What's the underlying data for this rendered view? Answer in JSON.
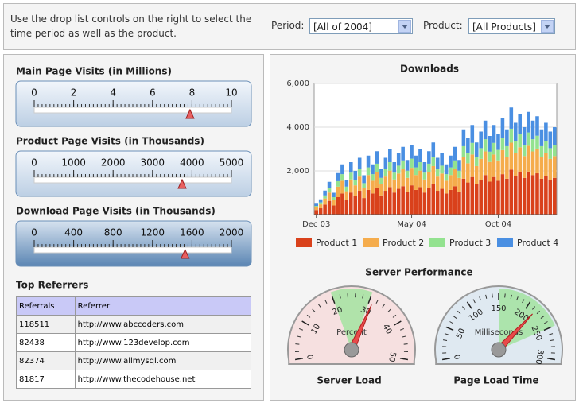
{
  "header": {
    "instructions": "Use the drop list controls on the right to select the time period as well as the product.",
    "period_label": "Period:",
    "period_value": "[All of 2004]",
    "product_label": "Product:",
    "product_value": "[All Products]"
  },
  "linear_gauges": [
    {
      "title": "Main Page Visits (in Millions)",
      "lim": [
        0,
        10
      ],
      "ticks": [
        0,
        2,
        4,
        6,
        8,
        10
      ],
      "value": 7.9
    },
    {
      "title": "Product Page Visits (in Thousands)",
      "lim": [
        0,
        5000
      ],
      "ticks": [
        0,
        1000,
        2000,
        3000,
        4000,
        5000
      ],
      "value": 3750
    },
    {
      "title": "Download Page Visits (in Thousands)",
      "lim": [
        0,
        2000
      ],
      "ticks": [
        0,
        400,
        800,
        1200,
        1600,
        2000
      ],
      "value": 1530
    }
  ],
  "referrers": {
    "title": "Top Referrers",
    "columns": [
      "Referrals",
      "Referrer"
    ],
    "rows": [
      [
        118511,
        "http://www.abccoders.com"
      ],
      [
        82438,
        "http://www.123develop.com"
      ],
      [
        82374,
        "http://www.allmysql.com"
      ],
      [
        81817,
        "http://www.thecodehouse.net"
      ]
    ]
  },
  "chart_data": {
    "type": "bar",
    "stacked": true,
    "title": "Downloads",
    "categories": [
      "Dec 03",
      null,
      null,
      null,
      null,
      null,
      null,
      null,
      null,
      null,
      null,
      null,
      null,
      null,
      null,
      null,
      null,
      null,
      null,
      null,
      null,
      null,
      "May 04",
      null,
      null,
      null,
      null,
      null,
      null,
      null,
      null,
      null,
      null,
      null,
      null,
      null,
      null,
      null,
      null,
      null,
      null,
      null,
      "Oct 04",
      null,
      null,
      null,
      null,
      null,
      null,
      null,
      null,
      null,
      null,
      null,
      null,
      null
    ],
    "series": [
      {
        "name": "Product 1",
        "color": "#d9411b",
        "values": [
          210,
          290,
          460,
          630,
          420,
          800,
          970,
          670,
          1010,
          840,
          1090,
          760,
          1130,
          970,
          1220,
          880,
          1090,
          1260,
          1010,
          1180,
          1300,
          1050,
          1340,
          1130,
          1260,
          1010,
          1220,
          1390,
          1090,
          1180,
          970,
          1130,
          1300,
          1050,
          1640,
          1470,
          1720,
          1390,
          1600,
          1810,
          1510,
          1720,
          1550,
          1850,
          1640,
          2060,
          1760,
          1930,
          1680,
          1970,
          1810,
          1890,
          1640,
          1760,
          1600,
          1680
        ]
      },
      {
        "name": "Product 2",
        "color": "#f5ac4c",
        "values": [
          130,
          180,
          280,
          380,
          250,
          480,
          580,
          400,
          600,
          500,
          650,
          450,
          680,
          580,
          730,
          530,
          650,
          750,
          600,
          700,
          780,
          630,
          800,
          680,
          750,
          600,
          730,
          830,
          650,
          700,
          580,
          680,
          780,
          630,
          980,
          880,
          1030,
          830,
          950,
          1080,
          900,
          1030,
          930,
          1100,
          980,
          1230,
          1050,
          1150,
          1000,
          1180,
          1080,
          1130,
          980,
          1050,
          950,
          1000
        ]
      },
      {
        "name": "Product 3",
        "color": "#93e28f",
        "values": [
          60,
          90,
          140,
          200,
          130,
          250,
          300,
          210,
          310,
          260,
          340,
          230,
          350,
          300,
          380,
          270,
          340,
          390,
          310,
          360,
          400,
          330,
          420,
          350,
          390,
          310,
          380,
          430,
          340,
          360,
          300,
          350,
          400,
          330,
          510,
          460,
          530,
          430,
          490,
          560,
          470,
          530,
          480,
          570,
          510,
          640,
          550,
          600,
          520,
          610,
          560,
          590,
          510,
          550,
          490,
          520
        ]
      },
      {
        "name": "Product 4",
        "color": "#4a8fe2",
        "values": [
          100,
          140,
          220,
          290,
          200,
          370,
          450,
          320,
          480,
          400,
          520,
          360,
          540,
          450,
          570,
          420,
          520,
          600,
          480,
          560,
          620,
          490,
          640,
          540,
          600,
          480,
          570,
          650,
          520,
          560,
          450,
          540,
          620,
          490,
          770,
          690,
          820,
          650,
          760,
          850,
          720,
          820,
          740,
          880,
          770,
          970,
          840,
          920,
          800,
          940,
          850,
          890,
          770,
          840,
          760,
          800
        ]
      }
    ],
    "ylim": [
      0,
      6000
    ],
    "yticks": [
      {
        "value": 2000,
        "label": "2,000"
      },
      {
        "value": 4000,
        "label": "4,000"
      },
      {
        "value": 6000,
        "label": "6,000"
      }
    ],
    "grid": true,
    "legend": "bottom"
  },
  "performance": {
    "title": "Server Performance",
    "gauges": [
      {
        "title": "Server Load",
        "unit_label": "Percent",
        "lim": [
          0,
          50
        ],
        "ticks": [
          0,
          10,
          20,
          30,
          40,
          50
        ],
        "band": [
          20,
          30
        ],
        "band_color": "#a3e3a0",
        "face_color": "#f6e0e0",
        "value": 31
      },
      {
        "title": "Page Load Time",
        "unit_label": "Milliseconds",
        "lim": [
          0,
          300
        ],
        "ticks": [
          0,
          50,
          100,
          150,
          200,
          250,
          300
        ],
        "band": [
          150,
          250
        ],
        "band_color": "#a3e3a0",
        "face_color": "#dfe9f1",
        "value": 215
      }
    ]
  }
}
